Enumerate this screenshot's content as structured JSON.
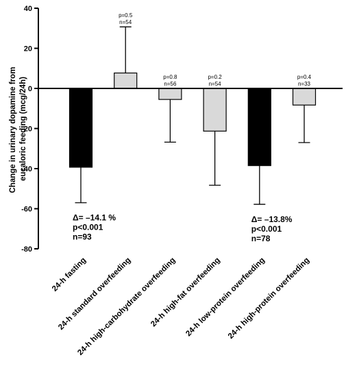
{
  "chart_data": {
    "type": "bar",
    "ylabel_lines": [
      "Change in urinary dopamine from",
      "eucaloric feeding (mcg/24h)"
    ],
    "ylim": [
      -80,
      40
    ],
    "yticks": [
      -80,
      -60,
      -40,
      -20,
      0,
      20,
      40
    ],
    "yticklabels": [
      "-80",
      "-60",
      "-40",
      "-20",
      "0",
      "20",
      "40"
    ],
    "bars": [
      {
        "category": "24-h fasting",
        "value": -39.3,
        "error": 17.7,
        "color": "#000000",
        "annotation_small": [],
        "annotation_big": [
          "Δ= –14.1 %",
          "p<0.001",
          "n=93"
        ]
      },
      {
        "category": "24-h standard overfeeding",
        "value": 7.7,
        "error": 23,
        "color": "#d9d9d9",
        "annotation_small": [
          "p=0.5",
          "n=54"
        ],
        "annotation_big": []
      },
      {
        "category": "24-h high-carbohydrate overfeeding",
        "value": -5.5,
        "error": 21.3,
        "color": "#d9d9d9",
        "annotation_small": [
          "p=0.8",
          "n=56"
        ],
        "annotation_big": []
      },
      {
        "category": "24-h high-fat overfeeding",
        "value": -21.3,
        "error": 27,
        "color": "#d9d9d9",
        "annotation_small": [
          "p=0.2",
          "n=54"
        ],
        "annotation_big": []
      },
      {
        "category": "24-h low-protein overfeeding",
        "value": -38.5,
        "error": 19.3,
        "color": "#000000",
        "annotation_small": [],
        "annotation_big": [
          "Δ= –13.8%",
          "p<0.001",
          "n=78"
        ]
      },
      {
        "category": "24-h high-protein overfeeding",
        "value": -8.3,
        "error": 18.7,
        "color": "#d9d9d9",
        "annotation_small": [
          "p=0.4",
          "n=33"
        ],
        "annotation_big": []
      }
    ]
  }
}
